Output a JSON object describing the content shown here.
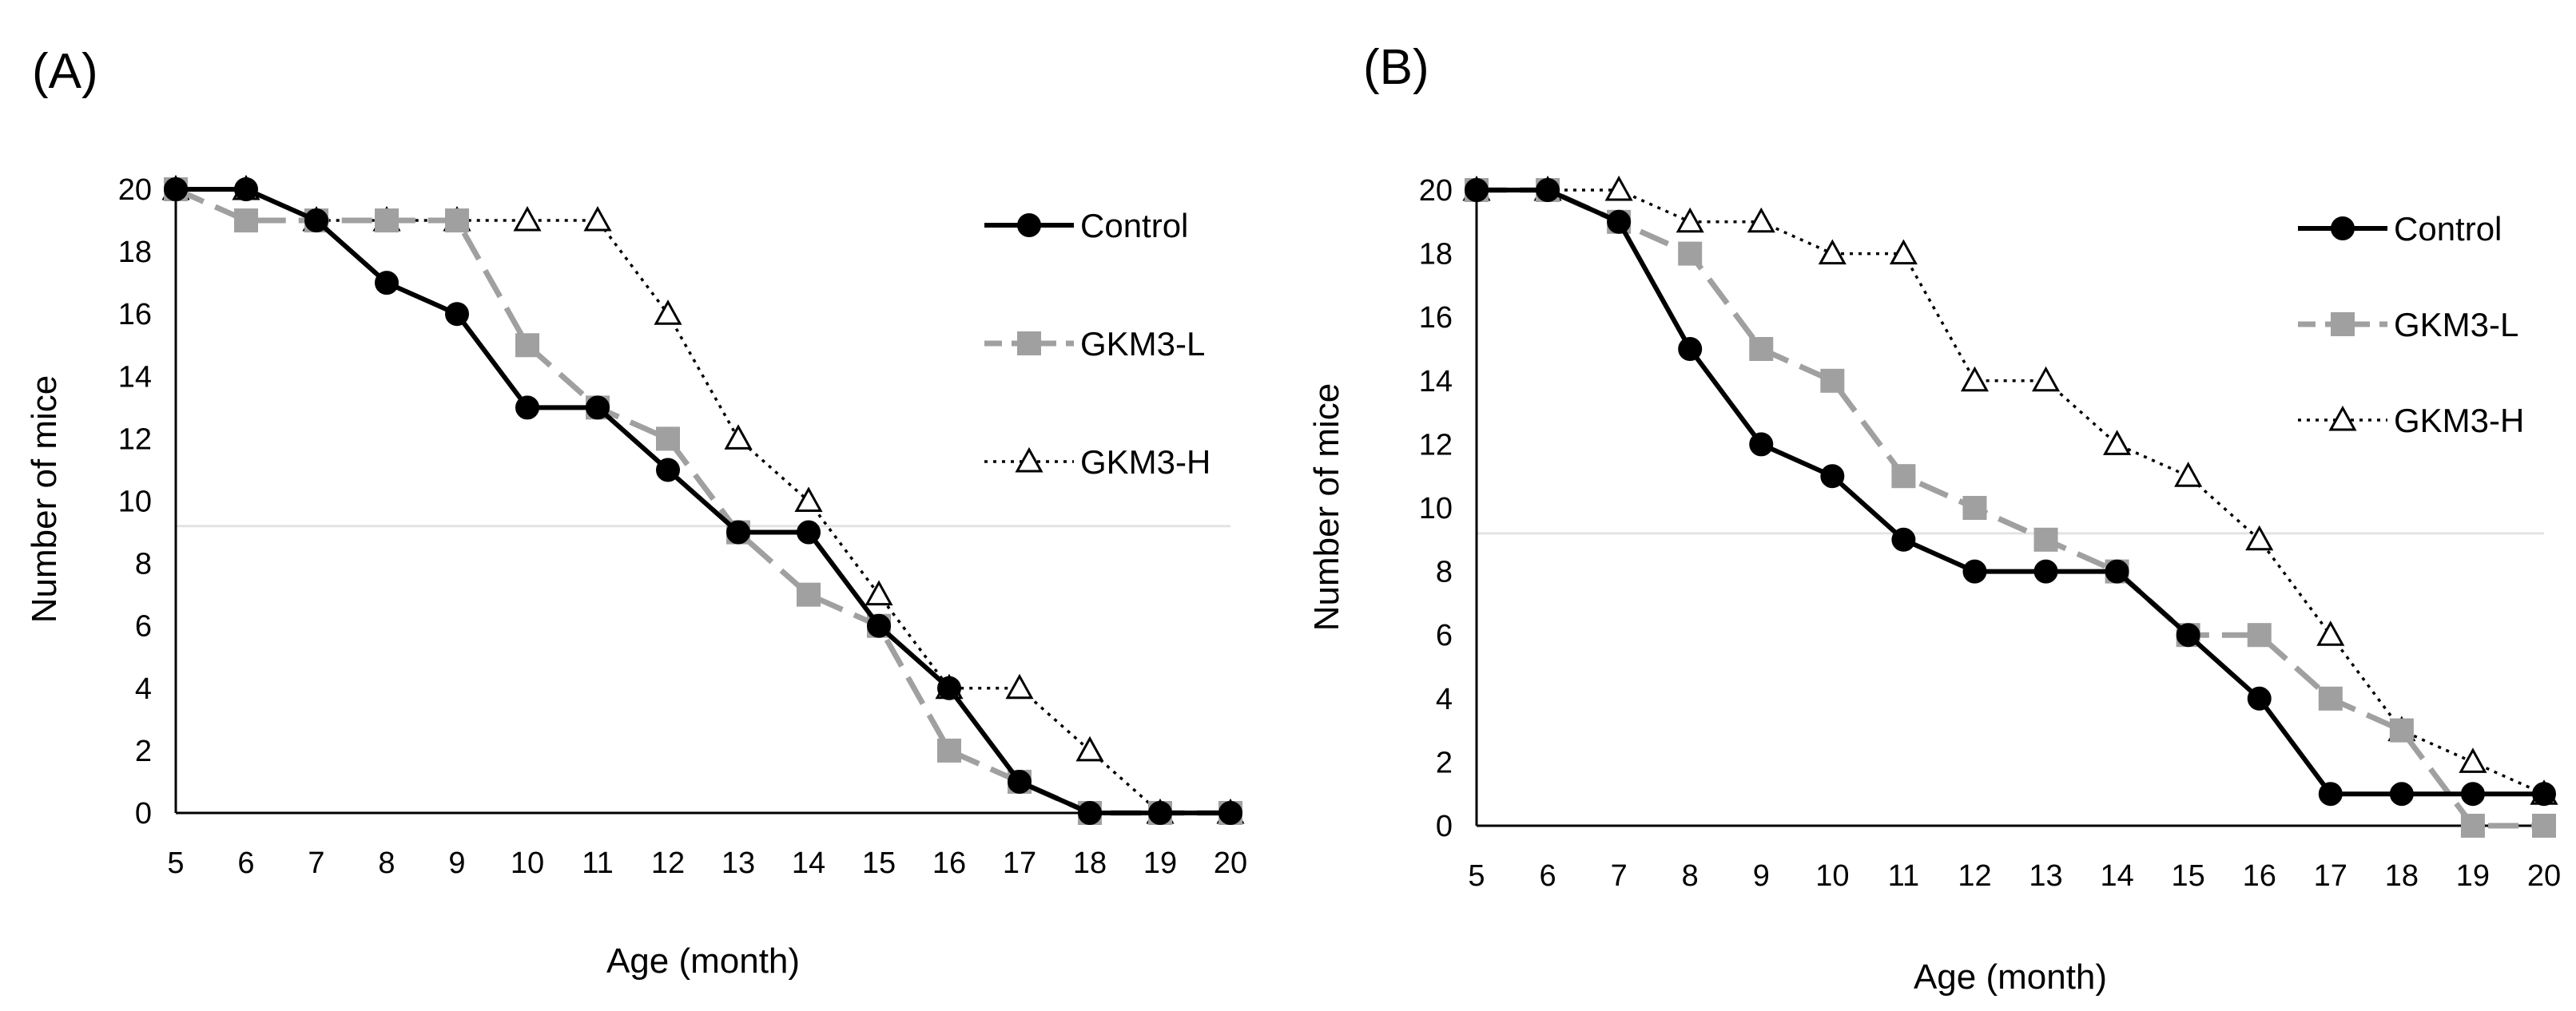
{
  "chart_data": [
    {
      "type": "line",
      "panel_label": "(A)",
      "title": "",
      "xlabel": "Age (month)",
      "ylabel": "Number of mice",
      "x": [
        5,
        6,
        7,
        8,
        9,
        10,
        11,
        12,
        13,
        14,
        15,
        16,
        17,
        18,
        19,
        20
      ],
      "xlim": [
        5,
        20
      ],
      "ylim": [
        0,
        20
      ],
      "yticks": [
        0,
        2,
        4,
        6,
        8,
        10,
        12,
        14,
        16,
        18,
        20
      ],
      "grid": false,
      "legend_position": "top-right",
      "series": [
        {
          "name": "Control",
          "style": "solid-black-circle",
          "color": "#000000",
          "values": [
            20,
            20,
            19,
            17,
            16,
            13,
            13,
            11,
            9,
            9,
            6,
            4,
            1,
            0,
            0,
            0
          ]
        },
        {
          "name": "GKM3-L",
          "style": "dashed-gray-square",
          "color": "#a0a0a0",
          "values": [
            20,
            19,
            19,
            19,
            19,
            15,
            13,
            12,
            9,
            7,
            6,
            2,
            1,
            0,
            0,
            0
          ]
        },
        {
          "name": "GKM3-H",
          "style": "dotted-triangle",
          "color": "#000000",
          "values": [
            20,
            20,
            19,
            19,
            19,
            19,
            19,
            16,
            12,
            10,
            7,
            4,
            4,
            2,
            0,
            0
          ]
        }
      ]
    },
    {
      "type": "line",
      "panel_label": "(B)",
      "title": "",
      "xlabel": "Age (month)",
      "ylabel": "Number of mice",
      "x": [
        5,
        6,
        7,
        8,
        9,
        10,
        11,
        12,
        13,
        14,
        15,
        16,
        17,
        18,
        19,
        20
      ],
      "xlim": [
        5,
        20
      ],
      "ylim": [
        0,
        20
      ],
      "yticks": [
        0,
        2,
        4,
        6,
        8,
        10,
        12,
        14,
        16,
        18,
        20
      ],
      "grid": false,
      "legend_position": "top-right",
      "series": [
        {
          "name": "Control",
          "style": "solid-black-circle",
          "color": "#000000",
          "values": [
            20,
            20,
            19,
            15,
            12,
            11,
            9,
            8,
            8,
            8,
            6,
            4,
            1,
            1,
            1,
            1
          ]
        },
        {
          "name": "GKM3-L",
          "style": "dashed-gray-square",
          "color": "#a0a0a0",
          "values": [
            20,
            20,
            19,
            18,
            15,
            14,
            11,
            10,
            9,
            8,
            6,
            6,
            4,
            3,
            0,
            0
          ]
        },
        {
          "name": "GKM3-H",
          "style": "dotted-triangle",
          "color": "#000000",
          "values": [
            20,
            20,
            20,
            19,
            19,
            18,
            18,
            14,
            14,
            12,
            11,
            9,
            6,
            3,
            2,
            1
          ]
        }
      ]
    }
  ]
}
